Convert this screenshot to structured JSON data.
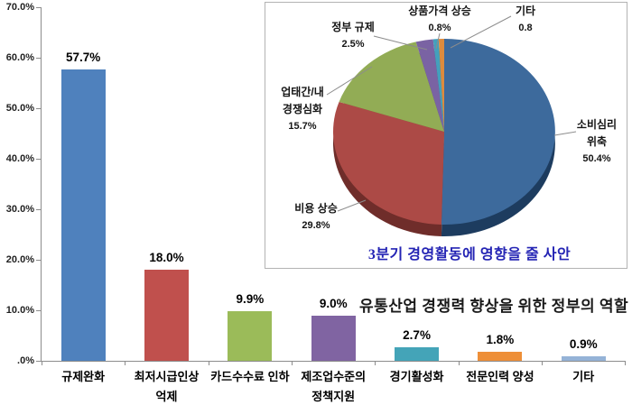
{
  "page": {
    "background": "#FFFFFF"
  },
  "chart_data": [
    {
      "type": "bar",
      "title": "유통산업 경쟁력 향상을 위한 정부의 역할",
      "title_color": "#1A1A1A",
      "categories": [
        "규제완화",
        "최저시급인상\n억제",
        "카드수수료 인하",
        "제조업수준의\n정책지원",
        "경기활성화",
        "전문인력 양성",
        "기타"
      ],
      "values": [
        57.7,
        18.0,
        9.9,
        9.0,
        2.7,
        1.8,
        0.9
      ],
      "value_labels": [
        "57.7%",
        "18.0%",
        "9.9%",
        "9.0%",
        "2.7%",
        "1.8%",
        "0.9%"
      ],
      "bar_colors": [
        "#4F81BD",
        "#C0504D",
        "#9BBB59",
        "#8064A2",
        "#44A4B8",
        "#EE8F38",
        "#95B3D7"
      ],
      "y_tick_labels": [
        "70.0%",
        "60.0%",
        "50.0%",
        "40.0%",
        "30.0%",
        "20.0%",
        "10.0%",
        ".0%"
      ],
      "y_tick_values": [
        70,
        60,
        50,
        40,
        30,
        20,
        10,
        0
      ],
      "ylim": [
        0,
        70
      ],
      "xlabel": "",
      "ylabel": "",
      "grid": false,
      "legend": "none",
      "axis_color": "#8C8C8C"
    },
    {
      "type": "pie",
      "style": "3d",
      "title": "3분기 경영활동에 영향을 줄 사안",
      "title_color": "#2424B4",
      "labels": [
        "소비심리 위축",
        "비용 상승",
        "업태간/내 경쟁심화",
        "정부 규제",
        "상품가격 상승",
        "기타"
      ],
      "values": [
        50.4,
        29.8,
        15.7,
        2.5,
        0.8,
        0.8
      ],
      "value_labels": [
        "50.4%",
        "29.8%",
        "15.7%",
        "2.5%",
        "0.8%",
        "0.8"
      ],
      "label_lines": [
        [
          "소비심리",
          "위축",
          "50.4%"
        ],
        [
          "비용 상승",
          "29.8%"
        ],
        [
          "업태간/내",
          "경쟁심화",
          "15.7%"
        ],
        [
          "정부 규제",
          "2.5%"
        ],
        [
          "상품가격 상승",
          "0.8%"
        ],
        [
          "기타",
          "0.8"
        ]
      ],
      "colors": [
        "#3D6A9C",
        "#AC4A46",
        "#92AC55",
        "#7A63A3",
        "#44A0BC",
        "#DD8B3E"
      ],
      "depth_colors": [
        "#1D3C5F",
        "#6F2D2A",
        "#5C7232",
        "#4C3C6E",
        "#25657C",
        "#8F5720"
      ],
      "leader_line_color": "#8C8C8C",
      "panel_border_color": "#B3B3B3",
      "legend": "none"
    }
  ]
}
